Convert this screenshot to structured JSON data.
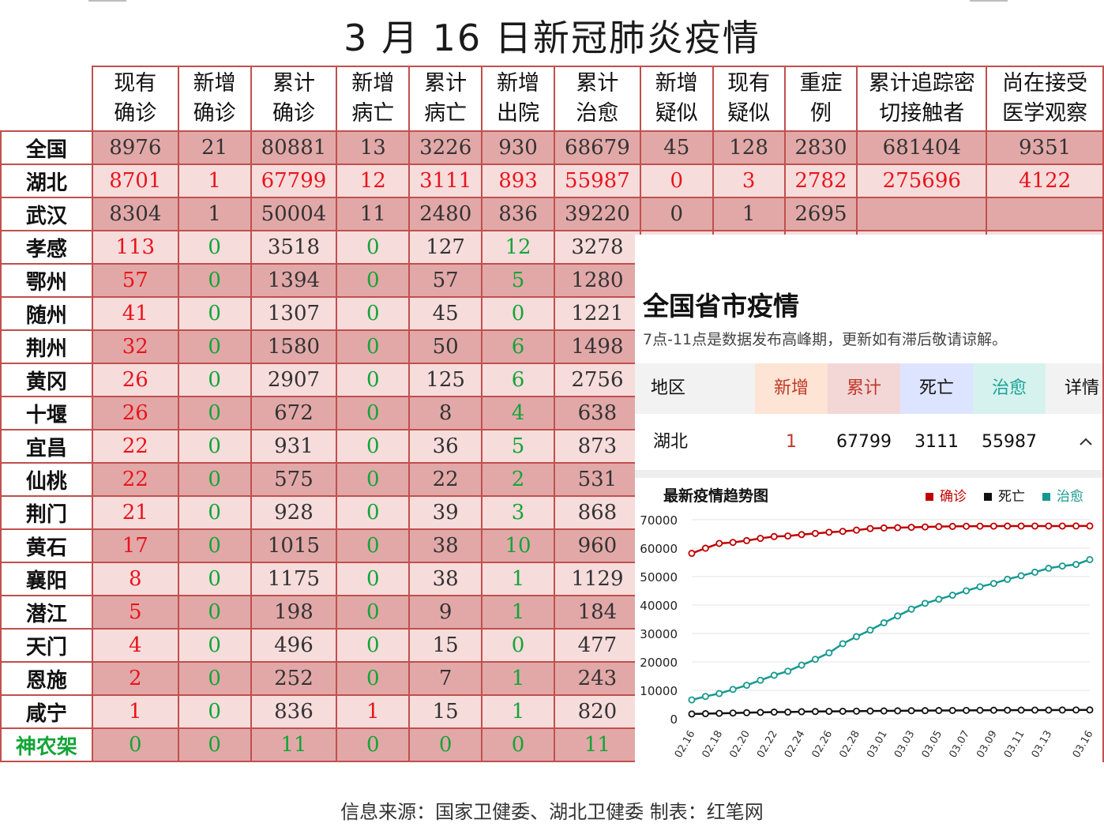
{
  "title": "3 月 16 日新冠肺炎疫情",
  "columns": [
    "现有确诊",
    "新增确诊",
    "累计确诊",
    "新增病亡",
    "累计病亡",
    "新增出院",
    "累计治愈",
    "新增疑似",
    "现有疑似",
    "重症例",
    "累计追踪密切接触者",
    "尚在接受医学观察"
  ],
  "column_lines": [
    [
      "现有",
      "确诊"
    ],
    [
      "新增",
      "确诊"
    ],
    [
      "累计",
      "确诊"
    ],
    [
      "新增",
      "病亡"
    ],
    [
      "累计",
      "病亡"
    ],
    [
      "新增",
      "出院"
    ],
    [
      "累计",
      "治愈"
    ],
    [
      "新增",
      "疑似"
    ],
    [
      "现有",
      "疑似"
    ],
    [
      "重症",
      "例"
    ],
    [
      "累计追踪密",
      "切接触者"
    ],
    [
      "尚在接受",
      "医学观察"
    ]
  ],
  "rows": [
    {
      "name": "全国",
      "values": [
        "8976",
        "21",
        "80881",
        "13",
        "3226",
        "930",
        "68679",
        "45",
        "128",
        "2830",
        "681404",
        "9351"
      ],
      "style": "dark"
    },
    {
      "name": "湖北",
      "values": [
        "8701",
        "1",
        "67799",
        "12",
        "3111",
        "893",
        "55987",
        "0",
        "3",
        "2782",
        "275696",
        "4122"
      ],
      "style": "red"
    },
    {
      "name": "武汉",
      "values": [
        "8304",
        "1",
        "50004",
        "11",
        "2480",
        "836",
        "39220",
        "0",
        "1",
        "2695",
        "",
        ""
      ],
      "style": "dark"
    },
    {
      "name": "孝感",
      "values": [
        "113",
        "0",
        "3518",
        "0",
        "127",
        "12",
        "3278"
      ]
    },
    {
      "name": "鄂州",
      "values": [
        "57",
        "0",
        "1394",
        "0",
        "57",
        "5",
        "1280"
      ]
    },
    {
      "name": "随州",
      "values": [
        "41",
        "0",
        "1307",
        "0",
        "45",
        "0",
        "1221"
      ]
    },
    {
      "name": "荆州",
      "values": [
        "32",
        "0",
        "1580",
        "0",
        "50",
        "6",
        "1498"
      ]
    },
    {
      "name": "黄冈",
      "values": [
        "26",
        "0",
        "2907",
        "0",
        "125",
        "6",
        "2756"
      ]
    },
    {
      "name": "十堰",
      "values": [
        "26",
        "0",
        "672",
        "0",
        "8",
        "4",
        "638"
      ]
    },
    {
      "name": "宜昌",
      "values": [
        "22",
        "0",
        "931",
        "0",
        "36",
        "5",
        "873"
      ]
    },
    {
      "name": "仙桃",
      "values": [
        "22",
        "0",
        "575",
        "0",
        "22",
        "2",
        "531"
      ]
    },
    {
      "name": "荆门",
      "values": [
        "21",
        "0",
        "928",
        "0",
        "39",
        "3",
        "868"
      ]
    },
    {
      "name": "黄石",
      "values": [
        "17",
        "0",
        "1015",
        "0",
        "38",
        "10",
        "960"
      ]
    },
    {
      "name": "襄阳",
      "values": [
        "8",
        "0",
        "1175",
        "0",
        "38",
        "1",
        "1129"
      ]
    },
    {
      "name": "潜江",
      "values": [
        "5",
        "0",
        "198",
        "0",
        "9",
        "1",
        "184"
      ]
    },
    {
      "name": "天门",
      "values": [
        "4",
        "0",
        "496",
        "0",
        "15",
        "0",
        "477"
      ]
    },
    {
      "name": "恩施",
      "values": [
        "2",
        "0",
        "252",
        "0",
        "7",
        "1",
        "243"
      ]
    },
    {
      "name": "咸宁",
      "values": [
        "1",
        "0",
        "836",
        "1",
        "15",
        "1",
        "820"
      ]
    },
    {
      "name": "神农架",
      "values": [
        "0",
        "0",
        "11",
        "0",
        "0",
        "0",
        "11"
      ],
      "name_color": "green"
    }
  ],
  "footer": "信息来源：国家卫健委、湖北卫健委    制表：红笔网",
  "panel": {
    "title": "全国省市疫情",
    "subtitle": "7点-11点是数据发布高峰期，更新如有滞后敬请谅解。",
    "headers": [
      "地区",
      "新增",
      "累计",
      "死亡",
      "治愈",
      "详情"
    ],
    "header_colors": [
      "#f2f2f2",
      "#fde4d4",
      "#f3d7d7",
      "#dde4ff",
      "#d6f2ee",
      "#f2f2f2"
    ],
    "header_text_colors": [
      "#111111",
      "#c0392b",
      "#c0392b",
      "#111111",
      "#19a39a",
      "#111111"
    ],
    "row": {
      "region": "湖北",
      "new": "1",
      "total": "67799",
      "dead": "3111",
      "cured": "55987"
    },
    "expand_icon": "chevron-up-icon"
  },
  "colors": {
    "red": "#e8151b",
    "green": "#13a538",
    "confirmed": "#c00000",
    "dead": "#111111",
    "cured": "#17998f"
  },
  "chart_data": {
    "type": "line",
    "title": "最新疫情趋势图",
    "x": [
      "02.16",
      "02.17",
      "02.18",
      "02.19",
      "02.20",
      "02.21",
      "02.22",
      "02.23",
      "02.24",
      "02.25",
      "02.26",
      "02.27",
      "02.28",
      "02.29",
      "03.01",
      "03.02",
      "03.03",
      "03.04",
      "03.05",
      "03.06",
      "03.07",
      "03.08",
      "03.09",
      "03.10",
      "03.11",
      "03.12",
      "03.13",
      "03.14",
      "03.15",
      "03.16"
    ],
    "x_tick_labels": [
      "02.16",
      "02.18",
      "02.20",
      "02.22",
      "02.24",
      "02.26",
      "02.28",
      "03.01",
      "03.03",
      "03.05",
      "03.07",
      "03.09",
      "03.11",
      "03.13",
      "03.16"
    ],
    "ylim": [
      0,
      70000
    ],
    "y_ticks": [
      0,
      10000,
      20000,
      30000,
      40000,
      50000,
      60000,
      70000
    ],
    "legend_position": "top-right",
    "series": [
      {
        "name": "确诊",
        "color": "#c00000",
        "values": [
          58182,
          59989,
          61682,
          62031,
          62662,
          63454,
          64084,
          64287,
          64786,
          65187,
          65596,
          65914,
          66337,
          66907,
          67103,
          67217,
          67332,
          67466,
          67592,
          67666,
          67707,
          67743,
          67760,
          67773,
          67781,
          67786,
          67790,
          67794,
          67798,
          67799
        ]
      },
      {
        "name": "死亡",
        "color": "#111111",
        "values": [
          1696,
          1789,
          1921,
          2029,
          2144,
          2250,
          2346,
          2346,
          2495,
          2563,
          2615,
          2641,
          2682,
          2727,
          2761,
          2803,
          2834,
          2871,
          2902,
          2931,
          2959,
          2986,
          3008,
          3024,
          3046,
          3056,
          3062,
          3075,
          3099,
          3111
        ]
      },
      {
        "name": "治愈",
        "color": "#17998f",
        "values": [
          6639,
          7862,
          8882,
          10337,
          11788,
          13557,
          15299,
          16748,
          18854,
          20912,
          23200,
          26403,
          28895,
          31187,
          33757,
          36167,
          38556,
          40592,
          42033,
          43468,
          45011,
          46433,
          47585,
          49056,
          50298,
          51553,
          52943,
          53726,
          54278,
          55987
        ]
      }
    ]
  }
}
